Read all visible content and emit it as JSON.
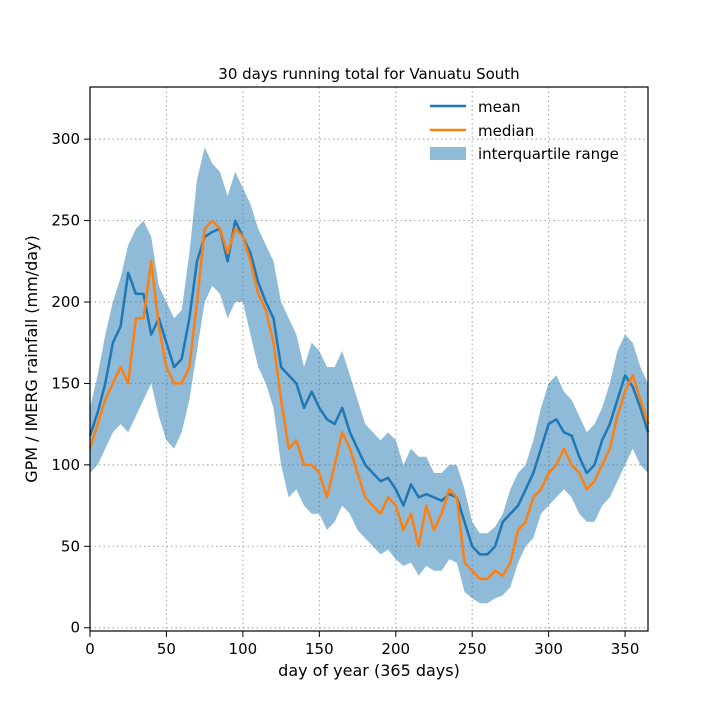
{
  "chart_data": {
    "type": "line",
    "title": "30 days running total for Vanuatu South",
    "xlabel": "day of year (365 days)",
    "ylabel": "GPM / IMERG rainfall (mm/day)",
    "xlim": [
      0,
      365
    ],
    "ylim": [
      -2,
      332
    ],
    "xticks": [
      0,
      50,
      100,
      150,
      200,
      250,
      300,
      350
    ],
    "yticks": [
      0,
      50,
      100,
      150,
      200,
      250,
      300
    ],
    "grid": true,
    "legend_position": "top-right",
    "x": [
      0,
      5,
      10,
      15,
      20,
      25,
      30,
      35,
      40,
      45,
      50,
      55,
      60,
      65,
      70,
      75,
      80,
      85,
      90,
      95,
      100,
      105,
      110,
      115,
      120,
      125,
      130,
      135,
      140,
      145,
      150,
      155,
      160,
      165,
      170,
      175,
      180,
      185,
      190,
      195,
      200,
      205,
      210,
      215,
      220,
      225,
      230,
      235,
      240,
      245,
      250,
      255,
      260,
      265,
      270,
      275,
      280,
      285,
      290,
      295,
      300,
      305,
      310,
      315,
      320,
      325,
      330,
      335,
      340,
      345,
      350,
      355,
      360,
      365
    ],
    "series": [
      {
        "name": "mean",
        "color": "#1f77b4",
        "values": [
          118,
          132,
          150,
          175,
          185,
          218,
          205,
          205,
          180,
          190,
          175,
          160,
          165,
          190,
          225,
          240,
          243,
          245,
          225,
          250,
          240,
          230,
          212,
          200,
          190,
          160,
          155,
          150,
          135,
          145,
          135,
          128,
          125,
          135,
          120,
          110,
          100,
          95,
          90,
          92,
          85,
          75,
          88,
          80,
          82,
          80,
          78,
          82,
          80,
          65,
          50,
          45,
          45,
          50,
          65,
          70,
          75,
          85,
          95,
          110,
          125,
          128,
          120,
          118,
          105,
          95,
          100,
          115,
          125,
          140,
          155,
          148,
          135,
          120
        ]
      },
      {
        "name": "median",
        "color": "#ff7f0e",
        "values": [
          110,
          125,
          140,
          150,
          160,
          150,
          190,
          190,
          225,
          185,
          160,
          150,
          150,
          160,
          200,
          245,
          250,
          245,
          230,
          245,
          240,
          225,
          205,
          195,
          175,
          140,
          110,
          115,
          100,
          100,
          95,
          80,
          100,
          120,
          110,
          95,
          80,
          75,
          70,
          80,
          75,
          60,
          70,
          50,
          75,
          60,
          70,
          85,
          80,
          40,
          35,
          30,
          30,
          35,
          32,
          40,
          60,
          65,
          80,
          85,
          95,
          100,
          110,
          100,
          95,
          85,
          90,
          100,
          110,
          130,
          145,
          155,
          140,
          125
        ]
      },
      {
        "name": "interquartile range",
        "color": "#1f77b4",
        "lower": [
          95,
          100,
          110,
          120,
          125,
          120,
          130,
          140,
          150,
          130,
          115,
          110,
          120,
          140,
          170,
          200,
          210,
          205,
          190,
          200,
          200,
          180,
          160,
          150,
          135,
          100,
          80,
          85,
          75,
          70,
          70,
          60,
          65,
          75,
          70,
          60,
          55,
          50,
          45,
          48,
          42,
          38,
          40,
          32,
          38,
          35,
          35,
          42,
          40,
          22,
          18,
          15,
          15,
          18,
          20,
          25,
          40,
          50,
          55,
          70,
          75,
          80,
          85,
          80,
          70,
          65,
          65,
          75,
          80,
          90,
          100,
          110,
          100,
          95
        ],
        "upper": [
          135,
          155,
          180,
          200,
          215,
          235,
          245,
          250,
          240,
          210,
          200,
          190,
          195,
          230,
          275,
          295,
          285,
          280,
          265,
          280,
          270,
          260,
          245,
          235,
          225,
          200,
          190,
          180,
          160,
          175,
          170,
          160,
          160,
          170,
          155,
          140,
          125,
          120,
          115,
          120,
          115,
          100,
          110,
          105,
          105,
          95,
          95,
          100,
          100,
          85,
          65,
          58,
          58,
          62,
          70,
          85,
          95,
          100,
          115,
          135,
          150,
          155,
          145,
          140,
          130,
          120,
          125,
          135,
          150,
          170,
          180,
          175,
          160,
          150
        ]
      }
    ]
  }
}
